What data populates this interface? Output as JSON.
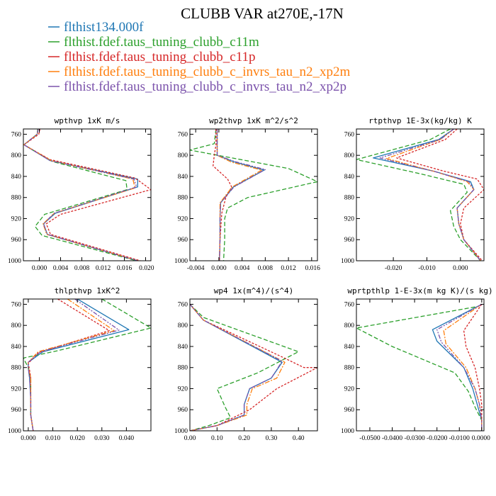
{
  "figure": {
    "title": "CLUBB VAR at270E,-17N"
  },
  "legend": [
    {
      "name": "flthist134.000f",
      "color": "#1f77b4"
    },
    {
      "name": "flthist.fdef.taus_tuning_clubb_c11m",
      "color": "#2ca02c"
    },
    {
      "name": "flthist.fdef.taus_tuning_clubb_c11p",
      "color": "#d62728"
    },
    {
      "name": "flthist.fdef.taus_tuning_clubb_c_invrs_tau_n2_xp2m",
      "color": "#ff7f0e"
    },
    {
      "name": "flthist.fdef.taus_tuning_clubb_c_invrs_tau_n2_xp2p",
      "color": "#7b52ab"
    }
  ],
  "chart_data": [
    {
      "type": "line",
      "title": "wpthvp  1xK m/s",
      "xlim": [
        -0.003,
        0.021
      ],
      "xticks": [
        0.0,
        0.004,
        0.008,
        0.012,
        0.016,
        0.02
      ],
      "xtick_labels": [
        "0.000",
        "0.004",
        "0.008",
        "0.012",
        "0.016",
        "0.020"
      ],
      "ylim": [
        1000,
        750
      ],
      "yticks": [
        760,
        800,
        840,
        880,
        920,
        960,
        1000
      ],
      "series": [
        {
          "name": "flthist134.000f",
          "x": [
            -0.0003,
            -0.0004,
            -0.0029,
            0.002,
            0.0185,
            0.0185,
            0.003,
            0.0008,
            0.0015,
            0.0185
          ],
          "y": [
            750,
            760,
            780,
            810,
            845,
            860,
            910,
            930,
            950,
            1000
          ]
        },
        {
          "name": "flthist.fdef.taus_tuning_clubb_c11m",
          "x": [
            -0.0003,
            -0.0004,
            -0.0029,
            0.0025,
            0.0163,
            0.0165,
            0.001,
            -0.0008,
            0.0005,
            0.0183
          ],
          "y": [
            750,
            760,
            780,
            812,
            848,
            865,
            912,
            935,
            952,
            1000
          ]
        },
        {
          "name": "flthist.fdef.taus_tuning_clubb_c11p",
          "x": [
            0.0001,
            -0.0001,
            -0.0029,
            0.002,
            0.018,
            0.021,
            0.004,
            0.0013,
            0.0021,
            0.019
          ],
          "y": [
            750,
            760,
            780,
            808,
            843,
            865,
            912,
            930,
            950,
            1000
          ]
        },
        {
          "name": "flthist.fdef.taus_tuning_clubb_c_invrs_tau_n2_xp2m",
          "x": [
            -0.0002,
            -0.0004,
            -0.0029,
            0.0022,
            0.0176,
            0.018,
            0.0028,
            0.0007,
            0.0014,
            0.0186
          ],
          "y": [
            750,
            760,
            780,
            810,
            845,
            862,
            910,
            930,
            950,
            1000
          ]
        },
        {
          "name": "flthist.fdef.taus_tuning_clubb_c_invrs_tau_n2_xp2p",
          "x": [
            -0.0002,
            -0.0004,
            -0.0029,
            0.002,
            0.0178,
            0.0183,
            0.0028,
            0.0008,
            0.0015,
            0.0185
          ],
          "y": [
            750,
            760,
            780,
            810,
            845,
            860,
            910,
            930,
            950,
            1000
          ]
        }
      ]
    },
    {
      "type": "line",
      "title": "wp2thvp  1xK m^2/s^2",
      "xlim": [
        -0.005,
        0.017
      ],
      "xticks": [
        -0.004,
        0.0,
        0.004,
        0.008,
        0.012,
        0.016
      ],
      "xtick_labels": [
        "-0.004",
        "0.000",
        "0.004",
        "0.008",
        "0.012",
        "0.016"
      ],
      "ylim": [
        1000,
        750
      ],
      "yticks": [
        760,
        800,
        840,
        880,
        920,
        960,
        1000
      ],
      "series": [
        {
          "name": "flthist134.000f",
          "x": [
            -0.0003,
            -0.0003,
            -0.0003,
            0.0025,
            0.0078,
            0.0025,
            0.0003,
            0.0002,
            0.0002,
            0.0001
          ],
          "y": [
            750,
            780,
            800,
            812,
            828,
            860,
            890,
            920,
            960,
            1000
          ]
        },
        {
          "name": "flthist.fdef.taus_tuning_clubb_c11m",
          "x": [
            -0.0005,
            -0.0008,
            -0.005,
            0.012,
            0.017,
            0.005,
            0.0015,
            0.001,
            0.001,
            0.0008
          ],
          "y": [
            750,
            778,
            790,
            825,
            850,
            880,
            900,
            920,
            960,
            1000
          ]
        },
        {
          "name": "flthist.fdef.taus_tuning_clubb_c11p",
          "x": [
            -0.0005,
            -0.0005,
            -0.0008,
            -0.001,
            0.0015,
            0.0022,
            0.0012,
            0.0005,
            0.0002,
            0.0001
          ],
          "y": [
            750,
            780,
            800,
            820,
            845,
            860,
            880,
            910,
            960,
            1000
          ]
        },
        {
          "name": "flthist.fdef.taus_tuning_clubb_c_invrs_tau_n2_xp2m",
          "x": [
            -0.0003,
            -0.0003,
            -0.0003,
            0.0022,
            0.0074,
            0.0023,
            0.0002,
            0.0002,
            0.0002,
            0.0001
          ],
          "y": [
            750,
            780,
            800,
            813,
            828,
            860,
            890,
            920,
            960,
            1000
          ]
        },
        {
          "name": "flthist.fdef.taus_tuning_clubb_c_invrs_tau_n2_xp2p",
          "x": [
            -0.0003,
            -0.0003,
            -0.0003,
            0.0028,
            0.008,
            0.0026,
            0.0003,
            0.0002,
            0.0002,
            0.0001
          ],
          "y": [
            750,
            780,
            800,
            812,
            827,
            860,
            890,
            920,
            960,
            1000
          ]
        }
      ]
    },
    {
      "type": "line",
      "title": "rtpthvp  1E-3x(kg/kg) K",
      "xlim": [
        -0.031,
        0.007
      ],
      "xticks": [
        -0.02,
        -0.01,
        0.0
      ],
      "xtick_labels": [
        "-0.020",
        "-0.010",
        "0.000"
      ],
      "ylim": [
        1000,
        750
      ],
      "yticks": [
        760,
        800,
        840,
        880,
        920,
        960,
        1000
      ],
      "series": [
        {
          "name": "flthist134.000f",
          "x": [
            -0.002,
            -0.0065,
            -0.026,
            -0.008,
            0.003,
            0.004,
            -0.001,
            -0.0005,
            0.001,
            0.006
          ],
          "y": [
            750,
            770,
            805,
            830,
            850,
            865,
            900,
            930,
            960,
            1000
          ]
        },
        {
          "name": "flthist.fdef.taus_tuning_clubb_c11m",
          "x": [
            -0.003,
            -0.009,
            -0.031,
            -0.012,
            0.001,
            0.002,
            -0.003,
            -0.002,
            0.0,
            0.006
          ],
          "y": [
            750,
            770,
            808,
            835,
            855,
            870,
            905,
            935,
            960,
            1000
          ]
        },
        {
          "name": "flthist.fdef.taus_tuning_clubb_c11p",
          "x": [
            -0.001,
            -0.0045,
            -0.019,
            -0.005,
            0.005,
            0.007,
            0.001,
            0.0,
            0.001,
            0.0065
          ],
          "y": [
            750,
            770,
            805,
            830,
            845,
            865,
            900,
            930,
            960,
            1000
          ]
        },
        {
          "name": "flthist.fdef.taus_tuning_clubb_c_invrs_tau_n2_xp2m",
          "x": [
            -0.002,
            -0.006,
            -0.022,
            -0.007,
            0.002,
            0.004,
            -0.001,
            -0.0005,
            0.001,
            0.006
          ],
          "y": [
            750,
            770,
            806,
            832,
            850,
            865,
            900,
            930,
            960,
            1000
          ]
        },
        {
          "name": "flthist.fdef.taus_tuning_clubb_c_invrs_tau_n2_xp2p",
          "x": [
            -0.002,
            -0.006,
            -0.024,
            -0.0075,
            0.0025,
            0.004,
            -0.001,
            -0.0005,
            0.001,
            0.006
          ],
          "y": [
            750,
            770,
            805,
            831,
            850,
            865,
            900,
            930,
            960,
            1000
          ]
        }
      ]
    },
    {
      "type": "line",
      "title": "thlpthvp  1xK^2",
      "xlim": [
        -0.002,
        0.05
      ],
      "xticks": [
        0.0,
        0.01,
        0.02,
        0.03,
        0.04
      ],
      "xtick_labels": [
        "0.000",
        "0.010",
        "0.020",
        "0.030",
        "0.040"
      ],
      "ylim": [
        1000,
        750
      ],
      "yticks": [
        760,
        800,
        840,
        880,
        920,
        960,
        1000
      ],
      "series": [
        {
          "name": "flthist134.000f",
          "x": [
            0.02,
            0.041,
            0.006,
            0.0,
            0.0,
            0.0005,
            0.001,
            0.001,
            0.002
          ],
          "y": [
            750,
            808,
            850,
            870,
            880,
            900,
            940,
            970,
            1000
          ]
        },
        {
          "name": "flthist.fdef.taus_tuning_clubb_c11m",
          "x": [
            0.03,
            0.05,
            0.012,
            -0.002,
            0.0,
            0.001,
            0.001,
            0.001,
            0.002
          ],
          "y": [
            750,
            805,
            848,
            862,
            880,
            900,
            940,
            970,
            1000
          ]
        },
        {
          "name": "flthist.fdef.taus_tuning_clubb_c11p",
          "x": [
            0.012,
            0.033,
            0.004,
            0.0,
            0.0005,
            0.001,
            0.001,
            0.001,
            0.002
          ],
          "y": [
            750,
            810,
            852,
            872,
            885,
            900,
            940,
            970,
            1000
          ]
        },
        {
          "name": "flthist.fdef.taus_tuning_clubb_c_invrs_tau_n2_xp2m",
          "x": [
            0.016,
            0.035,
            0.004,
            0.0,
            0.0,
            0.001,
            0.001,
            0.001,
            0.002
          ],
          "y": [
            750,
            810,
            850,
            870,
            880,
            900,
            940,
            970,
            1000
          ]
        },
        {
          "name": "flthist.fdef.taus_tuning_clubb_c_invrs_tau_n2_xp2p",
          "x": [
            0.019,
            0.037,
            0.005,
            0.0,
            0.0,
            0.0005,
            0.001,
            0.001,
            0.002
          ],
          "y": [
            750,
            809,
            850,
            870,
            880,
            900,
            940,
            970,
            1000
          ]
        }
      ]
    },
    {
      "type": "line",
      "title": "wp4  1x(m^4)/(s^4)",
      "xlim": [
        0.0,
        0.47
      ],
      "xticks": [
        0.0,
        0.1,
        0.2,
        0.3,
        0.4
      ],
      "xtick_labels": [
        "0.00",
        "0.10",
        "0.20",
        "0.30",
        "0.40"
      ],
      "ylim": [
        1000,
        750
      ],
      "yticks": [
        760,
        800,
        840,
        880,
        920,
        960,
        1000
      ],
      "series": [
        {
          "name": "flthist134.000f",
          "x": [
            0.0,
            0.05,
            0.34,
            0.3,
            0.22,
            0.2,
            0.2,
            0.1,
            0.0
          ],
          "y": [
            760,
            790,
            870,
            900,
            920,
            950,
            970,
            990,
            1000
          ]
        },
        {
          "name": "flthist.fdef.taus_tuning_clubb_c11m",
          "x": [
            0.0,
            0.05,
            0.4,
            0.25,
            0.1,
            0.13,
            0.15,
            0.07,
            0.0
          ],
          "y": [
            760,
            785,
            850,
            890,
            920,
            955,
            975,
            990,
            1000
          ]
        },
        {
          "name": "flthist.fdef.taus_tuning_clubb_c11p",
          "x": [
            0.0,
            0.05,
            0.34,
            0.42,
            0.47,
            0.32,
            0.22,
            0.1,
            0.0
          ],
          "y": [
            760,
            790,
            860,
            880,
            880,
            920,
            960,
            990,
            1000
          ]
        },
        {
          "name": "flthist.fdef.taus_tuning_clubb_c_invrs_tau_n2_xp2m",
          "x": [
            0.0,
            0.05,
            0.35,
            0.32,
            0.23,
            0.21,
            0.21,
            0.1,
            0.0
          ],
          "y": [
            760,
            790,
            870,
            900,
            920,
            950,
            970,
            990,
            1000
          ]
        },
        {
          "name": "flthist.fdef.taus_tuning_clubb_c_invrs_tau_n2_xp2p",
          "x": [
            0.0,
            0.05,
            0.34,
            0.3,
            0.22,
            0.2,
            0.2,
            0.1,
            0.0
          ],
          "y": [
            760,
            790,
            868,
            900,
            920,
            950,
            970,
            990,
            1000
          ]
        }
      ]
    },
    {
      "type": "line",
      "title": "wprtpthlp  1-E-3x(m kg K)/(s kg)",
      "xlim": [
        -0.056,
        0.001
      ],
      "xticks": [
        -0.05,
        -0.04,
        -0.03,
        -0.02,
        -0.01,
        0.0
      ],
      "xtick_labels": [
        "-0.0500",
        "-0.0400",
        "-0.0300",
        "-0.0200",
        "-0.0100",
        "0.0000"
      ],
      "ylim": [
        1000,
        750
      ],
      "yticks": [
        760,
        800,
        840,
        880,
        920,
        960,
        1000
      ],
      "series": [
        {
          "name": "flthist134.000f",
          "x": [
            0.0,
            -0.022,
            -0.02,
            -0.008,
            -0.004,
            -0.002,
            0.0,
            0.0
          ],
          "y": [
            760,
            808,
            830,
            880,
            920,
            950,
            980,
            1000
          ]
        },
        {
          "name": "flthist.fdef.taus_tuning_clubb_c11m",
          "x": [
            -0.003,
            -0.056,
            -0.04,
            -0.012,
            -0.006,
            -0.003,
            0.0,
            0.0
          ],
          "y": [
            765,
            805,
            840,
            890,
            925,
            955,
            980,
            1000
          ]
        },
        {
          "name": "flthist.fdef.taus_tuning_clubb_c11p",
          "x": [
            0.0,
            -0.008,
            -0.007,
            -0.003,
            -0.001,
            0.0,
            0.0,
            0.0
          ],
          "y": [
            760,
            810,
            840,
            880,
            920,
            950,
            980,
            1000
          ]
        },
        {
          "name": "flthist.fdef.taus_tuning_clubb_c_invrs_tau_n2_xp2m",
          "x": [
            0.0,
            -0.017,
            -0.016,
            -0.007,
            -0.003,
            -0.001,
            0.0,
            0.0
          ],
          "y": [
            760,
            810,
            835,
            880,
            920,
            950,
            980,
            1000
          ]
        },
        {
          "name": "flthist.fdef.taus_tuning_clubb_c_invrs_tau_n2_xp2p",
          "x": [
            0.0,
            -0.02,
            -0.018,
            -0.008,
            -0.003,
            -0.001,
            0.0,
            0.0
          ],
          "y": [
            760,
            808,
            832,
            880,
            920,
            950,
            980,
            1000
          ]
        }
      ]
    }
  ]
}
